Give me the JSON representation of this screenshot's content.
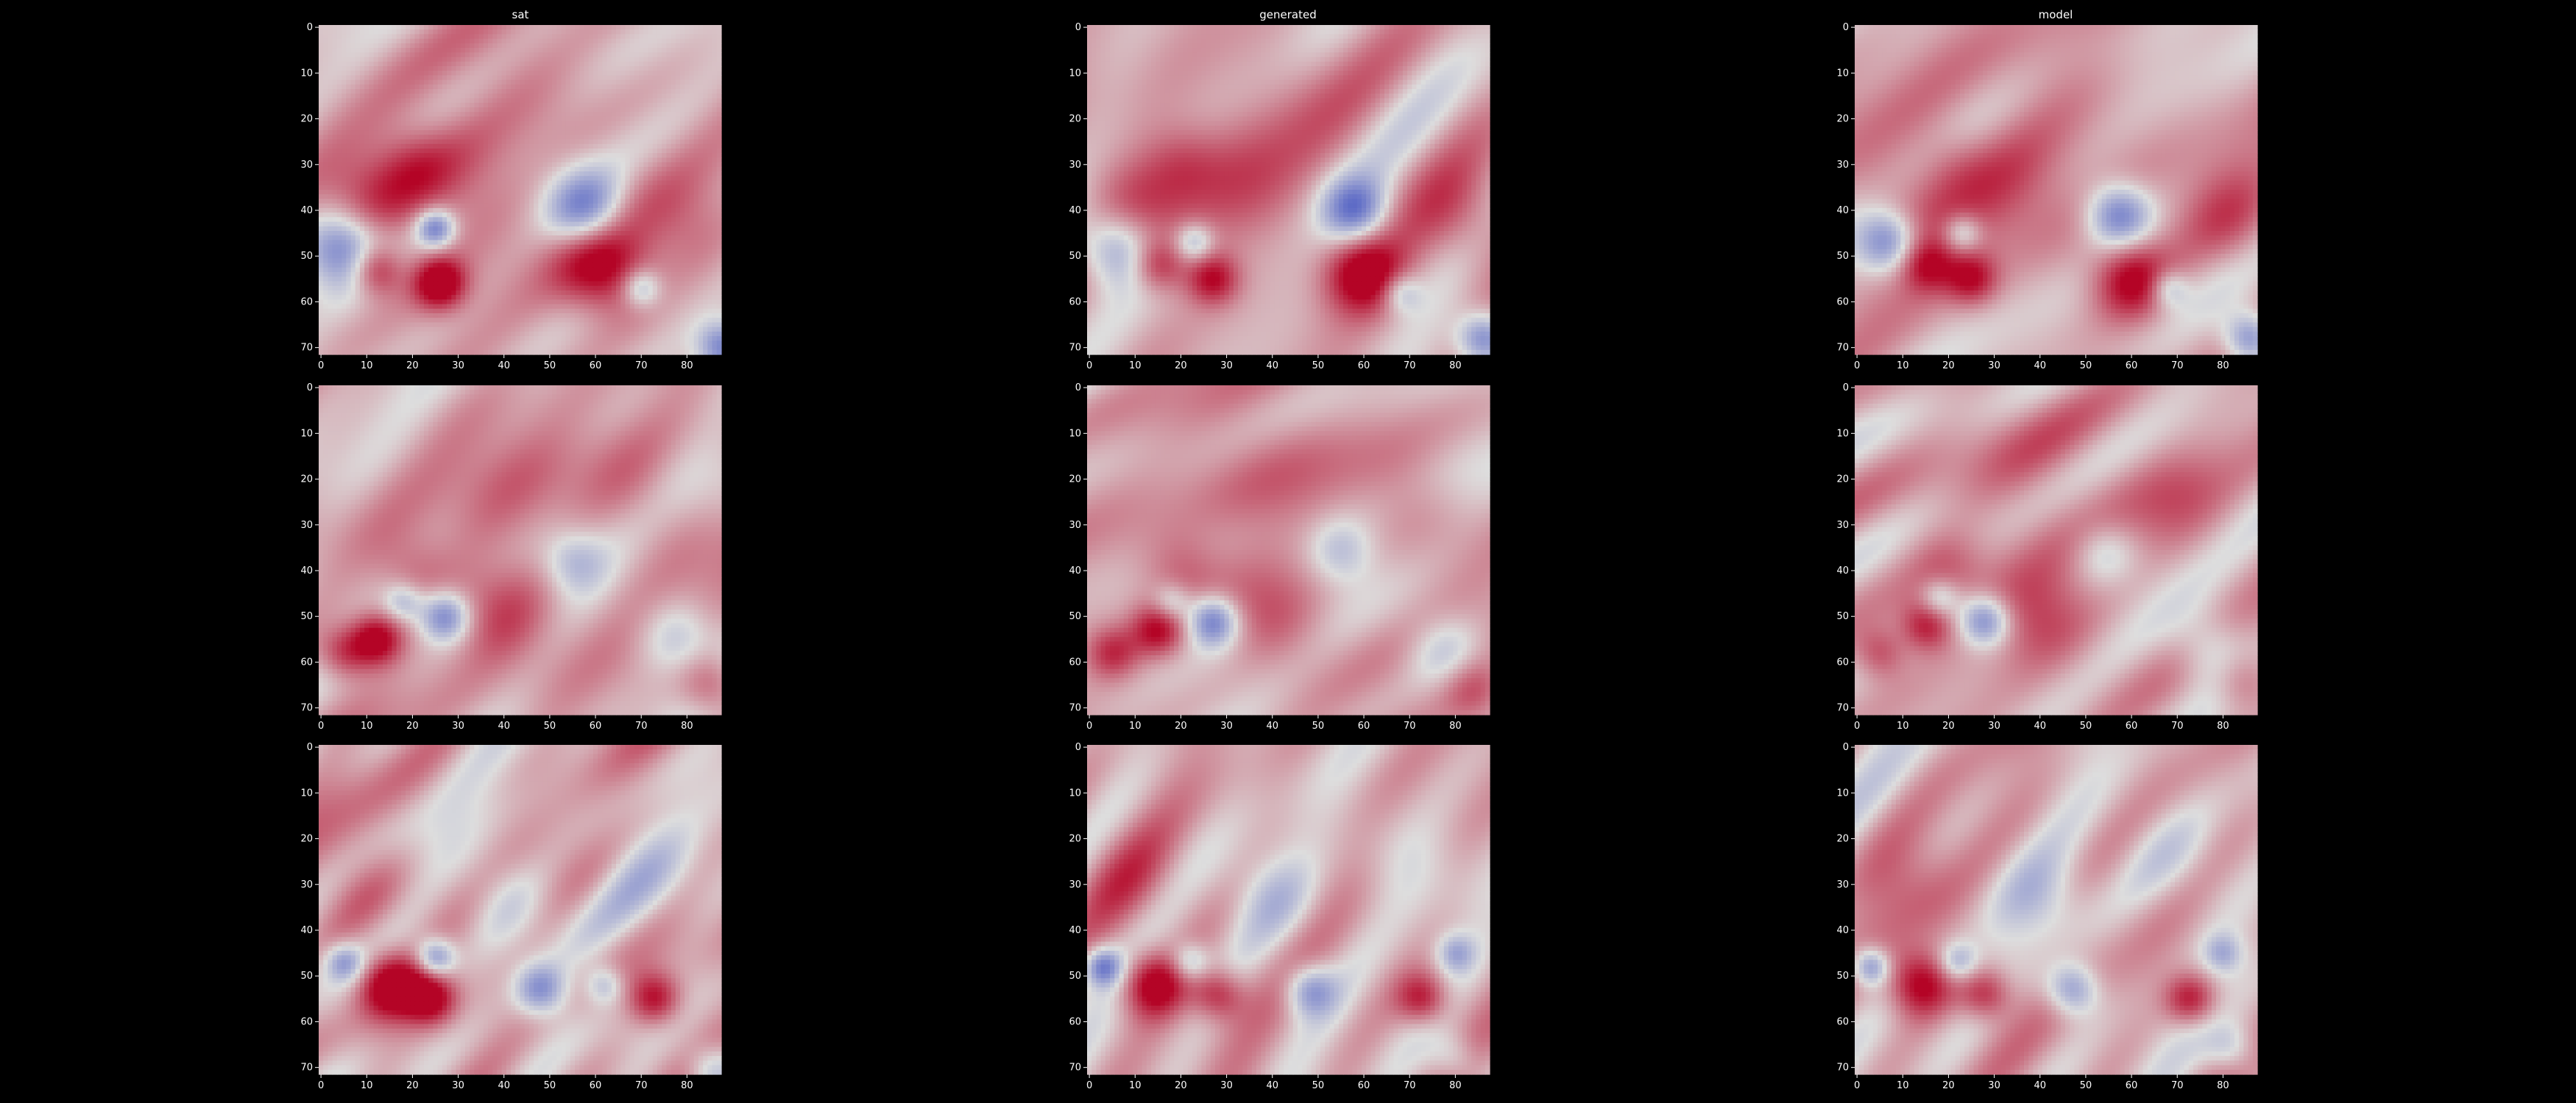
{
  "column_titles": [
    "sat",
    "generated",
    "model"
  ],
  "colormap": {
    "name": "coolwarm",
    "low": "#3b4cc0",
    "mid": "#dddddd",
    "high": "#b40426"
  },
  "background": "#000000",
  "chart_data": [
    {
      "type": "heatmap",
      "panel": "row-1-sat",
      "title": "sat",
      "xlim": [
        0,
        88
      ],
      "ylim": [
        72,
        0
      ],
      "xticks": [
        0,
        10,
        20,
        30,
        40,
        50,
        60,
        70,
        80
      ],
      "yticks": [
        0,
        10,
        20,
        30,
        40,
        50,
        60,
        70
      ],
      "seed": 11,
      "features": [
        [
          10,
          38,
          8,
          0.5
        ],
        [
          5,
          48,
          6,
          -0.95
        ],
        [
          12,
          53,
          4,
          0.8
        ],
        [
          26,
          56,
          4,
          1.0
        ],
        [
          25,
          44,
          3,
          -0.9
        ],
        [
          58,
          40,
          6,
          -0.9
        ],
        [
          62,
          53,
          7,
          0.9
        ],
        [
          70,
          57,
          3,
          -0.6
        ],
        [
          88,
          70,
          4,
          -0.9
        ],
        [
          45,
          15,
          10,
          0.2
        ],
        [
          30,
          35,
          10,
          0.4
        ],
        [
          80,
          45,
          8,
          0.35
        ],
        [
          20,
          30,
          6,
          0.3
        ]
      ]
    },
    {
      "type": "heatmap",
      "panel": "row-1-generated",
      "title": "generated",
      "xlim": [
        0,
        88
      ],
      "ylim": [
        72,
        0
      ],
      "xticks": [
        0,
        10,
        20,
        30,
        40,
        50,
        60,
        70,
        80
      ],
      "yticks": [
        0,
        10,
        20,
        30,
        40,
        50,
        60,
        70
      ],
      "seed": 12,
      "features": [
        [
          10,
          40,
          8,
          0.5
        ],
        [
          6,
          48,
          6,
          -0.85
        ],
        [
          15,
          52,
          4,
          0.6
        ],
        [
          27,
          55,
          4,
          0.75
        ],
        [
          23,
          47,
          3,
          -0.6
        ],
        [
          58,
          40,
          5,
          -0.85
        ],
        [
          60,
          54,
          6,
          0.9
        ],
        [
          68,
          58,
          3,
          -0.5
        ],
        [
          86,
          68,
          4,
          -0.85
        ],
        [
          45,
          15,
          10,
          0.2
        ],
        [
          32,
          33,
          10,
          0.4
        ],
        [
          82,
          42,
          8,
          0.4
        ],
        [
          20,
          30,
          6,
          0.3
        ]
      ]
    },
    {
      "type": "heatmap",
      "panel": "row-1-model",
      "title": "model",
      "xlim": [
        0,
        88
      ],
      "ylim": [
        72,
        0
      ],
      "xticks": [
        0,
        10,
        20,
        30,
        40,
        50,
        60,
        70,
        80
      ],
      "yticks": [
        0,
        10,
        20,
        30,
        40,
        50,
        60,
        70
      ],
      "seed": 13,
      "features": [
        [
          10,
          40,
          8,
          0.5
        ],
        [
          7,
          47,
          5,
          -0.95
        ],
        [
          15,
          52,
          4,
          0.6
        ],
        [
          25,
          55,
          4,
          0.7
        ],
        [
          23,
          45,
          3,
          -0.6
        ],
        [
          57,
          41,
          5,
          -0.9
        ],
        [
          60,
          55,
          6,
          0.85
        ],
        [
          68,
          57,
          3,
          -0.55
        ],
        [
          86,
          68,
          4,
          -0.9
        ],
        [
          45,
          15,
          10,
          0.2
        ],
        [
          32,
          33,
          10,
          0.4
        ],
        [
          82,
          42,
          8,
          0.45
        ],
        [
          20,
          30,
          6,
          0.3
        ]
      ]
    },
    {
      "type": "heatmap",
      "panel": "row-2-sat",
      "title": "",
      "xlim": [
        0,
        88
      ],
      "ylim": [
        72,
        0
      ],
      "xticks": [
        0,
        10,
        20,
        30,
        40,
        50,
        60,
        70,
        80
      ],
      "yticks": [
        0,
        10,
        20,
        30,
        40,
        50,
        60,
        70
      ],
      "seed": 21,
      "features": [
        [
          12,
          55,
          4,
          0.95
        ],
        [
          27,
          50,
          4,
          -0.9
        ],
        [
          18,
          47,
          3,
          -0.5
        ],
        [
          5,
          58,
          4,
          0.6
        ],
        [
          40,
          50,
          8,
          0.5
        ],
        [
          55,
          38,
          5,
          -0.45
        ],
        [
          78,
          55,
          6,
          -0.5
        ],
        [
          85,
          65,
          5,
          0.6
        ],
        [
          40,
          20,
          12,
          0.25
        ],
        [
          70,
          25,
          8,
          0.3
        ],
        [
          20,
          40,
          6,
          0.35
        ]
      ]
    },
    {
      "type": "heatmap",
      "panel": "row-2-generated",
      "title": "",
      "xlim": [
        0,
        88
      ],
      "ylim": [
        72,
        0
      ],
      "xticks": [
        0,
        10,
        20,
        30,
        40,
        50,
        60,
        70,
        80
      ],
      "yticks": [
        0,
        10,
        20,
        30,
        40,
        50,
        60,
        70
      ],
      "seed": 22,
      "features": [
        [
          15,
          53,
          4,
          0.7
        ],
        [
          27,
          51,
          4,
          -0.95
        ],
        [
          18,
          47,
          3,
          -0.5
        ],
        [
          5,
          58,
          4,
          0.55
        ],
        [
          40,
          50,
          8,
          0.5
        ],
        [
          55,
          36,
          5,
          -0.4
        ],
        [
          78,
          58,
          6,
          -0.5
        ],
        [
          84,
          66,
          5,
          0.5
        ],
        [
          40,
          20,
          12,
          0.25
        ],
        [
          70,
          25,
          8,
          0.3
        ],
        [
          20,
          40,
          6,
          0.35
        ]
      ]
    },
    {
      "type": "heatmap",
      "panel": "row-2-model",
      "title": "",
      "xlim": [
        0,
        88
      ],
      "ylim": [
        72,
        0
      ],
      "xticks": [
        0,
        10,
        20,
        30,
        40,
        50,
        60,
        70,
        80
      ],
      "yticks": [
        0,
        10,
        20,
        30,
        40,
        50,
        60,
        70
      ],
      "seed": 23,
      "features": [
        [
          15,
          52,
          4,
          0.75
        ],
        [
          28,
          51,
          4,
          -0.9
        ],
        [
          18,
          46,
          3,
          -0.5
        ],
        [
          5,
          58,
          4,
          0.55
        ],
        [
          40,
          50,
          8,
          0.5
        ],
        [
          54,
          36,
          5,
          -0.4
        ],
        [
          78,
          58,
          6,
          -0.55
        ],
        [
          84,
          64,
          5,
          0.5
        ],
        [
          40,
          20,
          12,
          0.25
        ],
        [
          70,
          25,
          8,
          0.3
        ],
        [
          20,
          40,
          6,
          0.35
        ]
      ]
    },
    {
      "type": "heatmap",
      "panel": "row-3-sat",
      "title": "",
      "xlim": [
        0,
        88
      ],
      "ylim": [
        72,
        0
      ],
      "xticks": [
        0,
        10,
        20,
        30,
        40,
        50,
        60,
        70,
        80
      ],
      "yticks": [
        0,
        10,
        20,
        30,
        40,
        50,
        60,
        70
      ],
      "seed": 31,
      "features": [
        [
          15,
          52,
          5,
          1.0
        ],
        [
          24,
          55,
          4,
          0.85
        ],
        [
          25,
          46,
          3,
          -0.85
        ],
        [
          5,
          47,
          3,
          -0.6
        ],
        [
          48,
          53,
          4,
          -0.75
        ],
        [
          73,
          55,
          4,
          0.8
        ],
        [
          62,
          52,
          3,
          -0.5
        ],
        [
          40,
          33,
          7,
          -0.35
        ],
        [
          70,
          25,
          8,
          -0.25
        ],
        [
          10,
          30,
          8,
          0.3
        ],
        [
          85,
          70,
          4,
          -0.5
        ]
      ]
    },
    {
      "type": "heatmap",
      "panel": "row-3-generated",
      "title": "",
      "xlim": [
        0,
        88
      ],
      "ylim": [
        72,
        0
      ],
      "xticks": [
        0,
        10,
        20,
        30,
        40,
        50,
        60,
        70,
        80
      ],
      "yticks": [
        0,
        10,
        20,
        30,
        40,
        50,
        60,
        70
      ],
      "seed": 32,
      "features": [
        [
          14,
          52,
          5,
          0.9
        ],
        [
          28,
          54,
          4,
          0.7
        ],
        [
          22,
          47,
          3,
          -0.6
        ],
        [
          3,
          48,
          3,
          -0.85
        ],
        [
          48,
          53,
          4,
          -0.7
        ],
        [
          73,
          55,
          4,
          0.75
        ],
        [
          80,
          45,
          3,
          -0.5
        ],
        [
          40,
          33,
          7,
          -0.35
        ],
        [
          70,
          25,
          8,
          -0.25
        ],
        [
          10,
          30,
          8,
          0.3
        ],
        [
          80,
          68,
          4,
          -0.4
        ]
      ]
    },
    {
      "type": "heatmap",
      "panel": "row-3-model",
      "title": "",
      "xlim": [
        0,
        88
      ],
      "ylim": [
        72,
        0
      ],
      "xticks": [
        0,
        10,
        20,
        30,
        40,
        50,
        60,
        70,
        80
      ],
      "yticks": [
        0,
        10,
        20,
        30,
        40,
        50,
        60,
        70
      ],
      "seed": 33,
      "features": [
        [
          14,
          52,
          5,
          0.9
        ],
        [
          28,
          54,
          4,
          0.7
        ],
        [
          22,
          47,
          3,
          -0.55
        ],
        [
          3,
          48,
          3,
          -0.85
        ],
        [
          47,
          53,
          4,
          -0.75
        ],
        [
          73,
          55,
          4,
          0.8
        ],
        [
          80,
          45,
          3,
          -0.45
        ],
        [
          40,
          33,
          7,
          -0.35
        ],
        [
          70,
          25,
          8,
          -0.25
        ],
        [
          10,
          30,
          8,
          0.3
        ],
        [
          82,
          66,
          4,
          -0.45
        ]
      ]
    }
  ]
}
